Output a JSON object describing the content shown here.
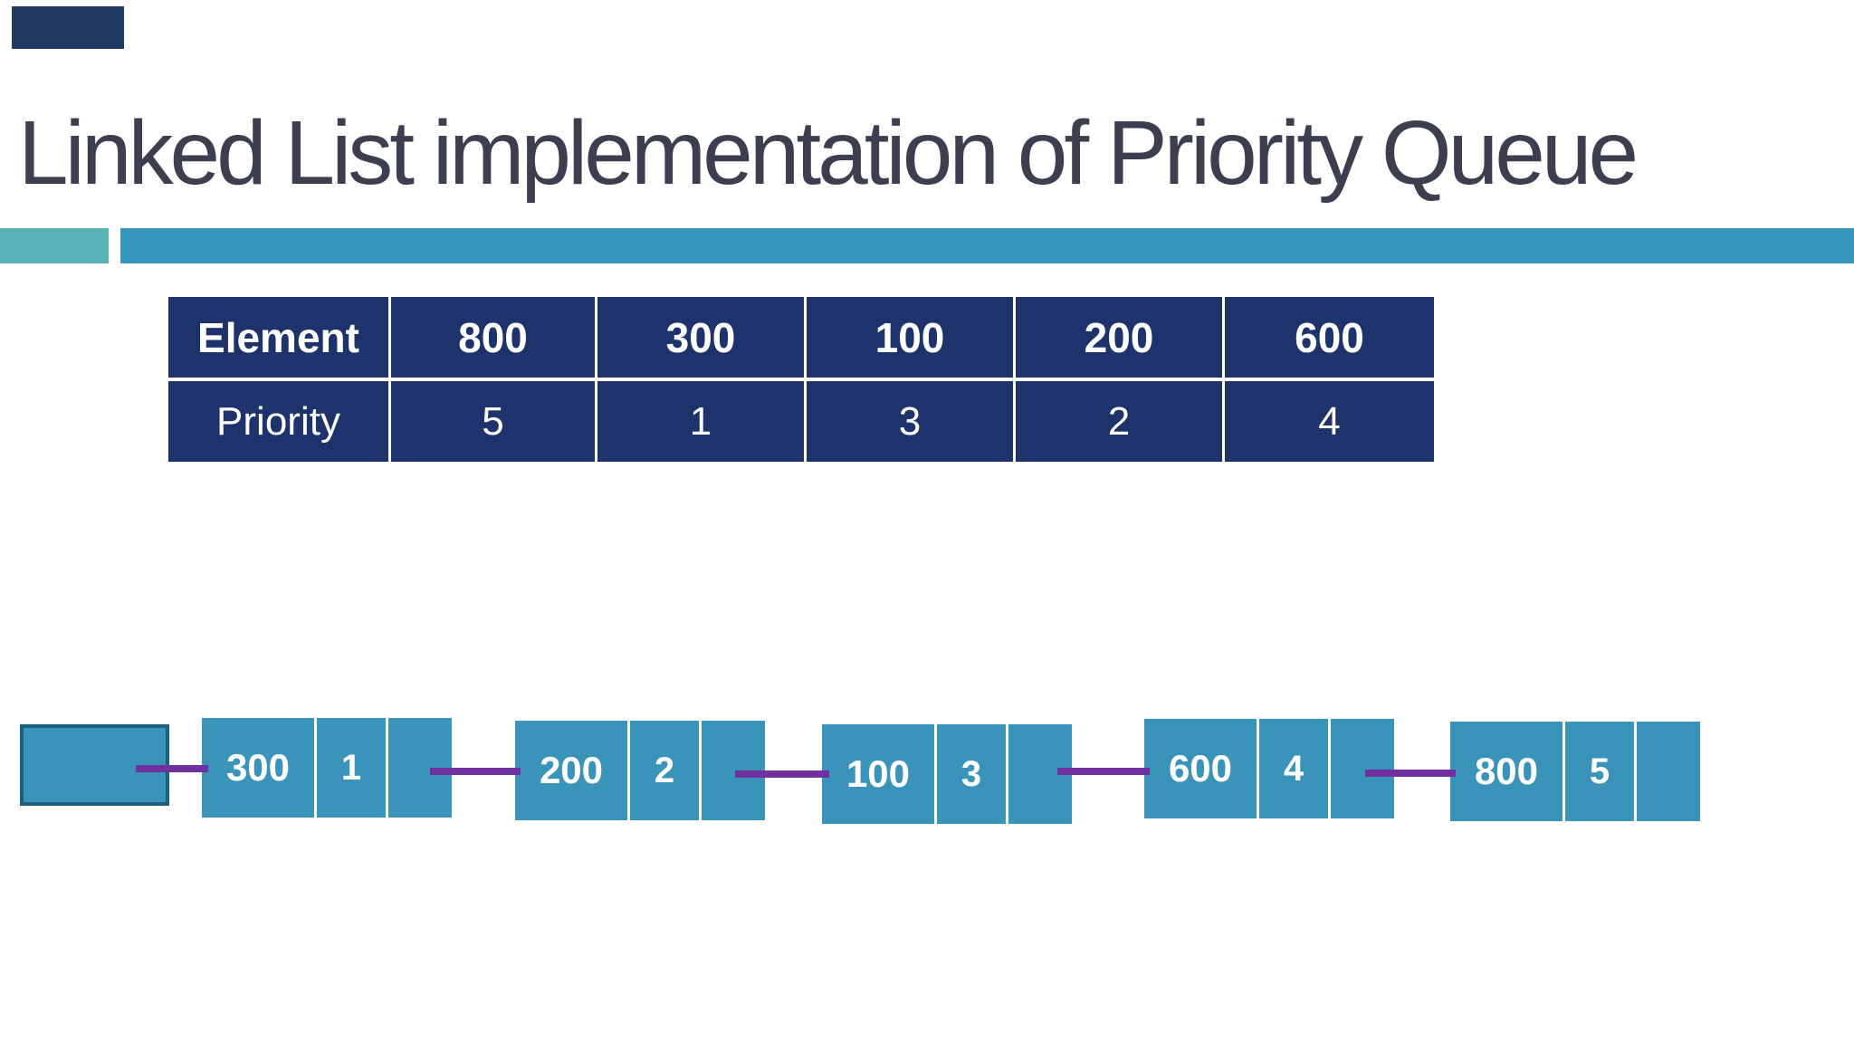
{
  "slide": {
    "title": "Linked List implementation of Priority Queue"
  },
  "table": {
    "header_row": {
      "label": "Element",
      "values": [
        "800",
        "300",
        "100",
        "200",
        "600"
      ]
    },
    "priority_row": {
      "label": "Priority",
      "values": [
        "5",
        "1",
        "3",
        "2",
        "4"
      ]
    }
  },
  "linked_list": {
    "nodes": [
      {
        "element": "300",
        "priority": "1"
      },
      {
        "element": "200",
        "priority": "2"
      },
      {
        "element": "100",
        "priority": "3"
      },
      {
        "element": "600",
        "priority": "4"
      },
      {
        "element": "800",
        "priority": "5"
      }
    ]
  },
  "colors": {
    "table_navy": "#1e336b",
    "corner_accent_navy": "#1f3864",
    "accent_bar_teal_light": "#58b2b6",
    "accent_bar_teal": "#3896bd",
    "node_fill_teal": "#3a94ba",
    "head_box_border_teal": "#1e5f7d",
    "connector_purple": "#7030a0",
    "title_text": "#3d3f51"
  }
}
